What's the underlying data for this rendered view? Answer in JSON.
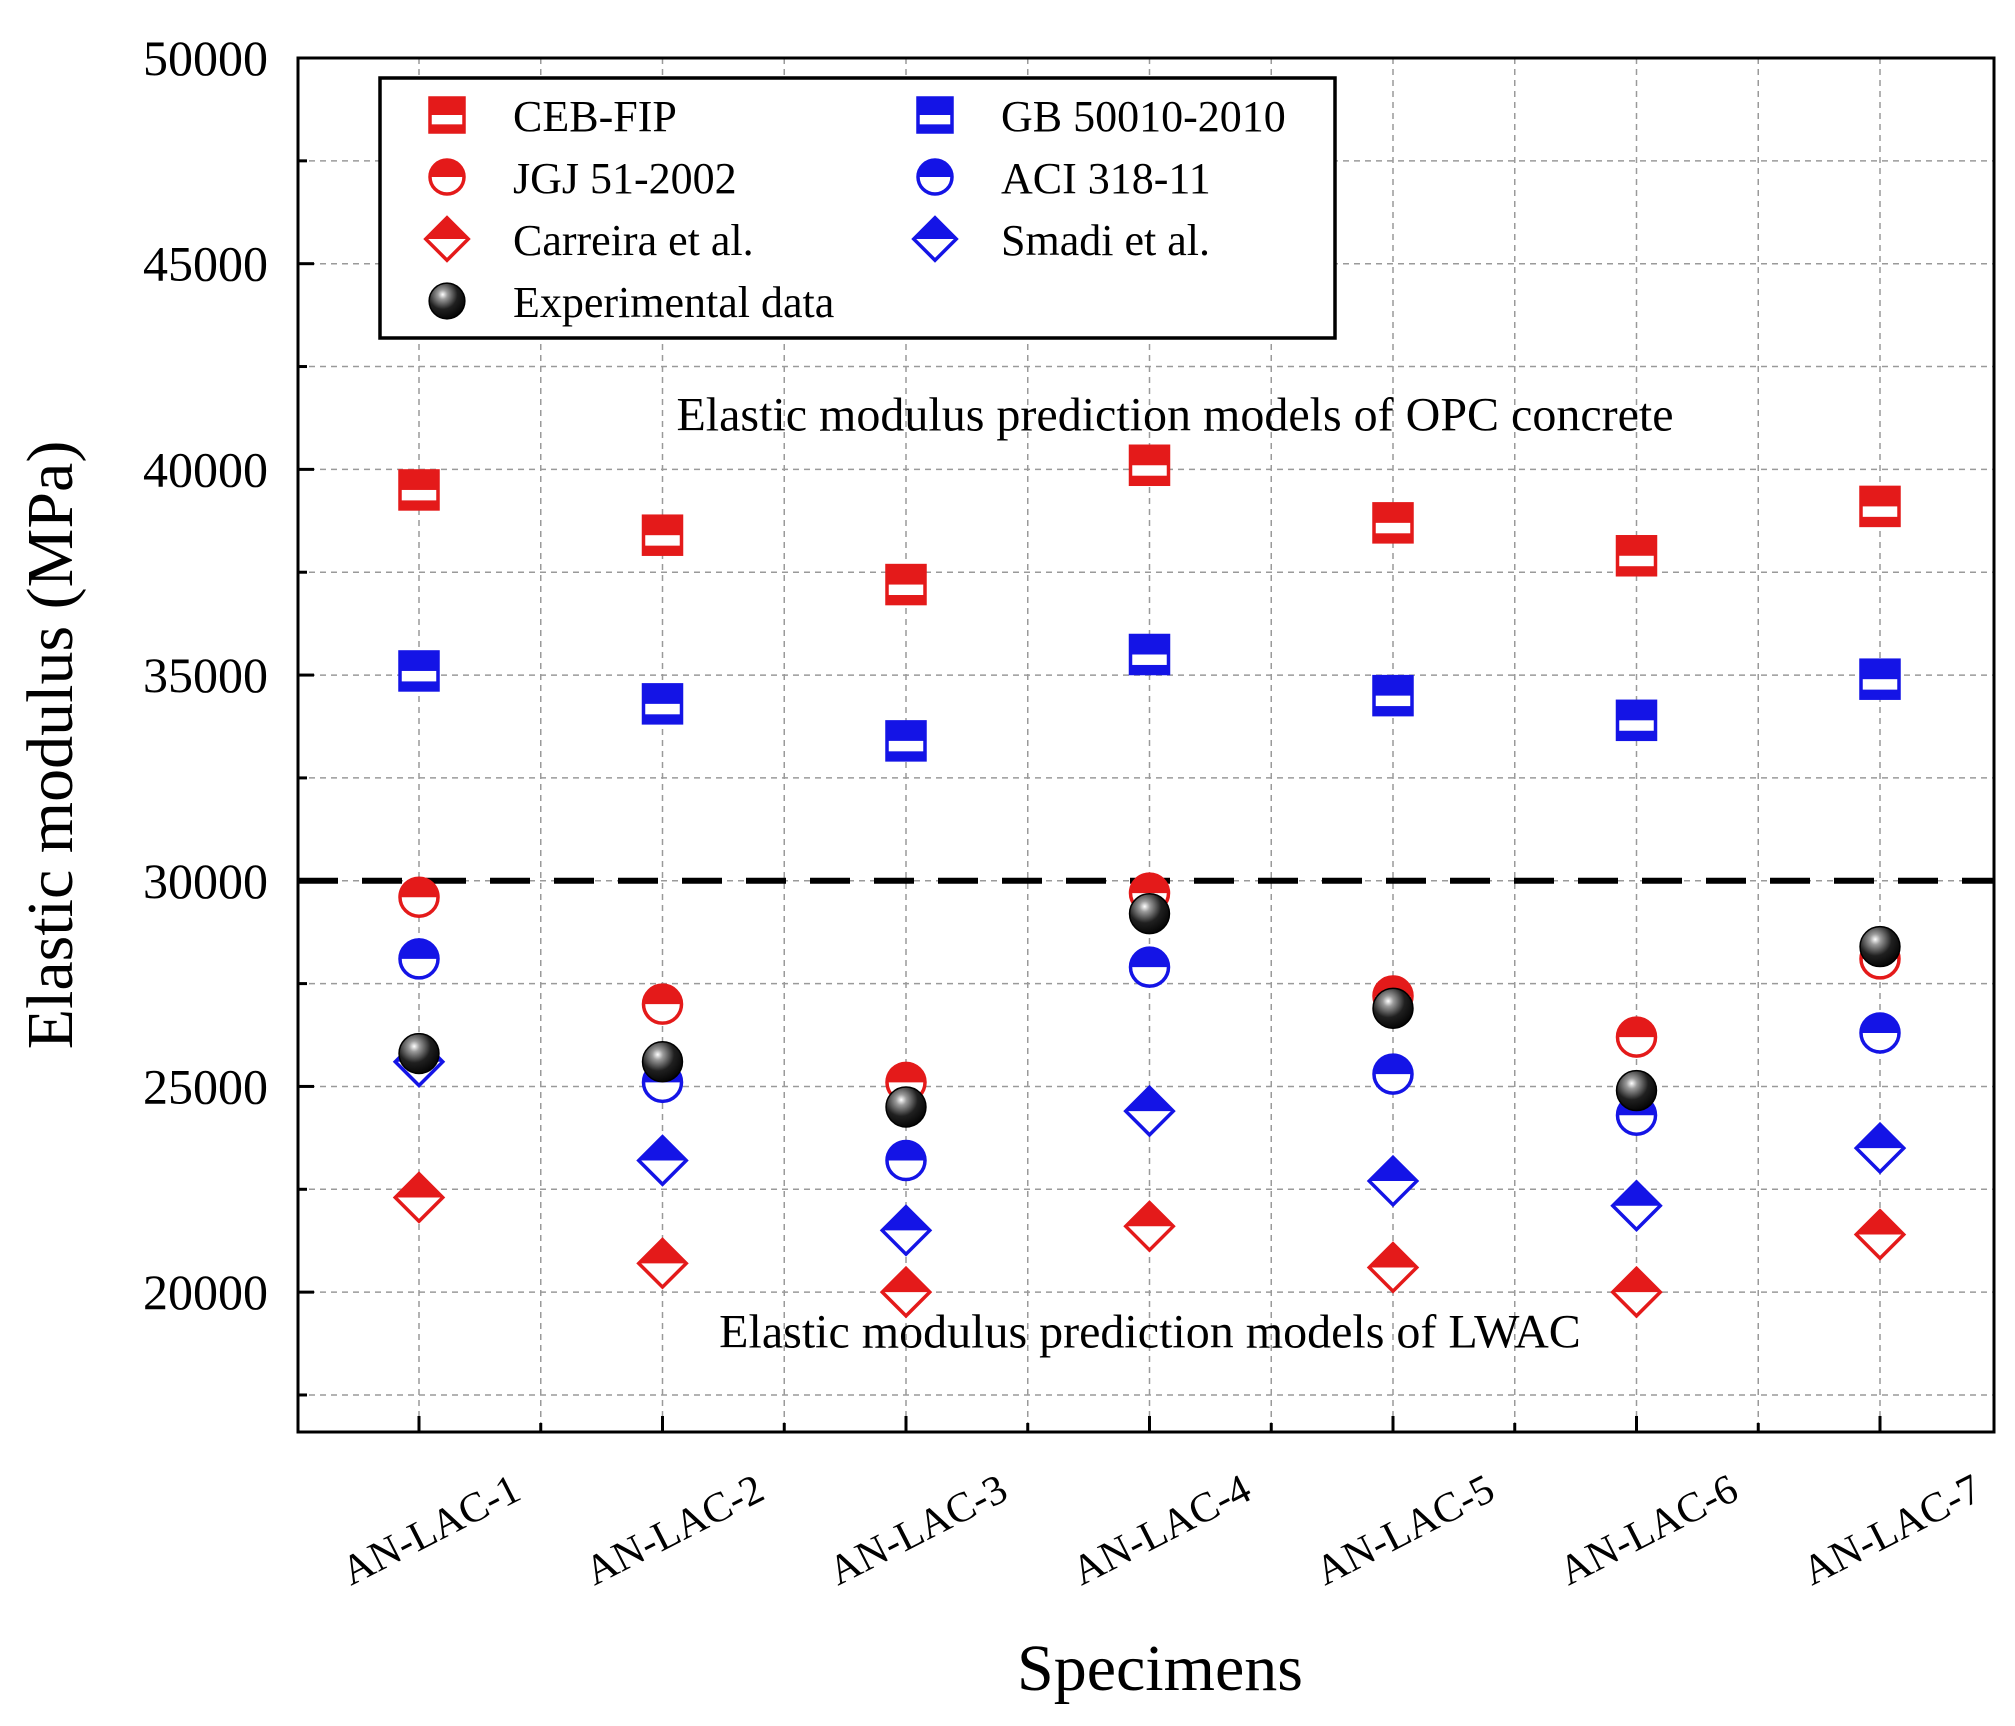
{
  "chart_data": {
    "type": "scatter",
    "title": "",
    "xlabel": "Specimens",
    "ylabel": "Elastic modulus (MPa)",
    "ylim": [
      16600,
      50000
    ],
    "y_ticks": [
      20000,
      25000,
      30000,
      35000,
      40000,
      45000,
      50000
    ],
    "categories": [
      "AN-LAC-1",
      "AN-LAC-2",
      "AN-LAC-3",
      "AN-LAC-4",
      "AN-LAC-5",
      "AN-LAC-6",
      "AN-LAC-7"
    ],
    "grid": true,
    "legend_position": "top-left",
    "reference_line": {
      "y": 30000,
      "style": "dashed",
      "color": "#000000"
    },
    "annotations": {
      "upper": "Elastic modulus prediction models of OPC concrete",
      "lower": "Elastic modulus prediction models of LWAC"
    },
    "series": [
      {
        "name": "CEB-FIP",
        "marker": "square",
        "color": "#e41a1a",
        "values": [
          39500,
          38400,
          37200,
          40100,
          38700,
          37900,
          39100
        ]
      },
      {
        "name": "GB 50010-2010",
        "marker": "square",
        "color": "#1414e6",
        "values": [
          35100,
          34300,
          33400,
          35500,
          34500,
          33900,
          34900
        ]
      },
      {
        "name": "JGJ 51-2002",
        "marker": "circle",
        "color": "#e41a1a",
        "values": [
          29600,
          27000,
          25100,
          29700,
          27200,
          26200,
          28100
        ]
      },
      {
        "name": "ACI 318-11",
        "marker": "circle",
        "color": "#1414e6",
        "values": [
          28100,
          25100,
          23200,
          27900,
          25300,
          24300,
          26300
        ]
      },
      {
        "name": "Carreira et al.",
        "marker": "diamond",
        "color": "#e41a1a",
        "values": [
          22300,
          20700,
          20000,
          21600,
          20600,
          20000,
          21400
        ]
      },
      {
        "name": "Smadi et al.",
        "marker": "diamond",
        "color": "#1414e6",
        "values": [
          25600,
          23200,
          21500,
          24400,
          22700,
          22100,
          23500
        ]
      },
      {
        "name": "Experimental data",
        "marker": "sphere",
        "color": "#111111",
        "values": [
          25800,
          25600,
          24500,
          29200,
          26900,
          24900,
          28400
        ]
      }
    ]
  }
}
